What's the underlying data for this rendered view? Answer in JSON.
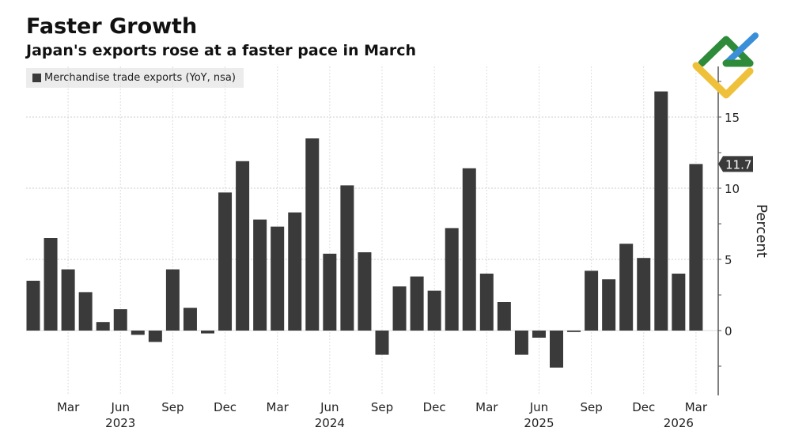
{
  "chart_data": {
    "type": "bar",
    "title": "Faster Growth",
    "subtitle": "Japan's exports rose at a faster pace in March",
    "legend": [
      "Merchandise trade exports (YoY, nsa)"
    ],
    "legend_placement": "top-left",
    "ylabel": "Percent",
    "ylim": [
      -4.5,
      18.5
    ],
    "yticks": [
      "0",
      "5",
      "10",
      "15"
    ],
    "last_value_label": "11.7",
    "categories": [
      "Jan 2023",
      "Feb 2023",
      "Mar 2023",
      "Apr 2023",
      "May 2023",
      "Jun 2023",
      "Jul 2023",
      "Aug 2023",
      "Sep 2023",
      "Oct 2023",
      "Nov 2023",
      "Dec 2023",
      "Jan 2024",
      "Feb 2024",
      "Mar 2024",
      "Apr 2024",
      "May 2024",
      "Jun 2024",
      "Jul 2024",
      "Aug 2024",
      "Sep 2024",
      "Oct 2024",
      "Nov 2024",
      "Dec 2024",
      "Jan 2025",
      "Feb 2025",
      "Mar 2025",
      "Apr 2025",
      "May 2025",
      "Jun 2025",
      "Jul 2025",
      "Aug 2025",
      "Sep 2025",
      "Oct 2025",
      "Nov 2025",
      "Dec 2025",
      "Jan 2026",
      "Feb 2026",
      "Mar 2026"
    ],
    "values": [
      3.5,
      6.5,
      4.3,
      2.7,
      0.6,
      1.5,
      -0.3,
      -0.8,
      4.3,
      1.6,
      -0.2,
      9.7,
      11.9,
      7.8,
      7.3,
      8.3,
      13.5,
      5.4,
      10.2,
      5.5,
      -1.7,
      3.1,
      3.8,
      2.8,
      7.2,
      11.4,
      4.0,
      2.0,
      -1.7,
      -0.5,
      -2.6,
      -0.1,
      4.2,
      3.6,
      6.1,
      5.1,
      16.8,
      4.0,
      11.7
    ],
    "xticks": [
      {
        "index": 2,
        "label": "Mar"
      },
      {
        "index": 5,
        "label": "Jun"
      },
      {
        "index": 8,
        "label": "Sep"
      },
      {
        "index": 11,
        "label": "Dec"
      },
      {
        "index": 14,
        "label": "Mar"
      },
      {
        "index": 17,
        "label": "Jun"
      },
      {
        "index": 20,
        "label": "Sep"
      },
      {
        "index": 23,
        "label": "Dec"
      },
      {
        "index": 26,
        "label": "Mar"
      },
      {
        "index": 29,
        "label": "Jun"
      },
      {
        "index": 32,
        "label": "Sep"
      },
      {
        "index": 35,
        "label": "Dec"
      },
      {
        "index": 38,
        "label": "Mar"
      }
    ],
    "years": [
      {
        "index": 5,
        "label": "2023"
      },
      {
        "index": 17,
        "label": "2024"
      },
      {
        "index": 29,
        "label": "2025"
      },
      {
        "index": 38,
        "label": "2026"
      }
    ],
    "bar_color": "#3a3a3a"
  }
}
